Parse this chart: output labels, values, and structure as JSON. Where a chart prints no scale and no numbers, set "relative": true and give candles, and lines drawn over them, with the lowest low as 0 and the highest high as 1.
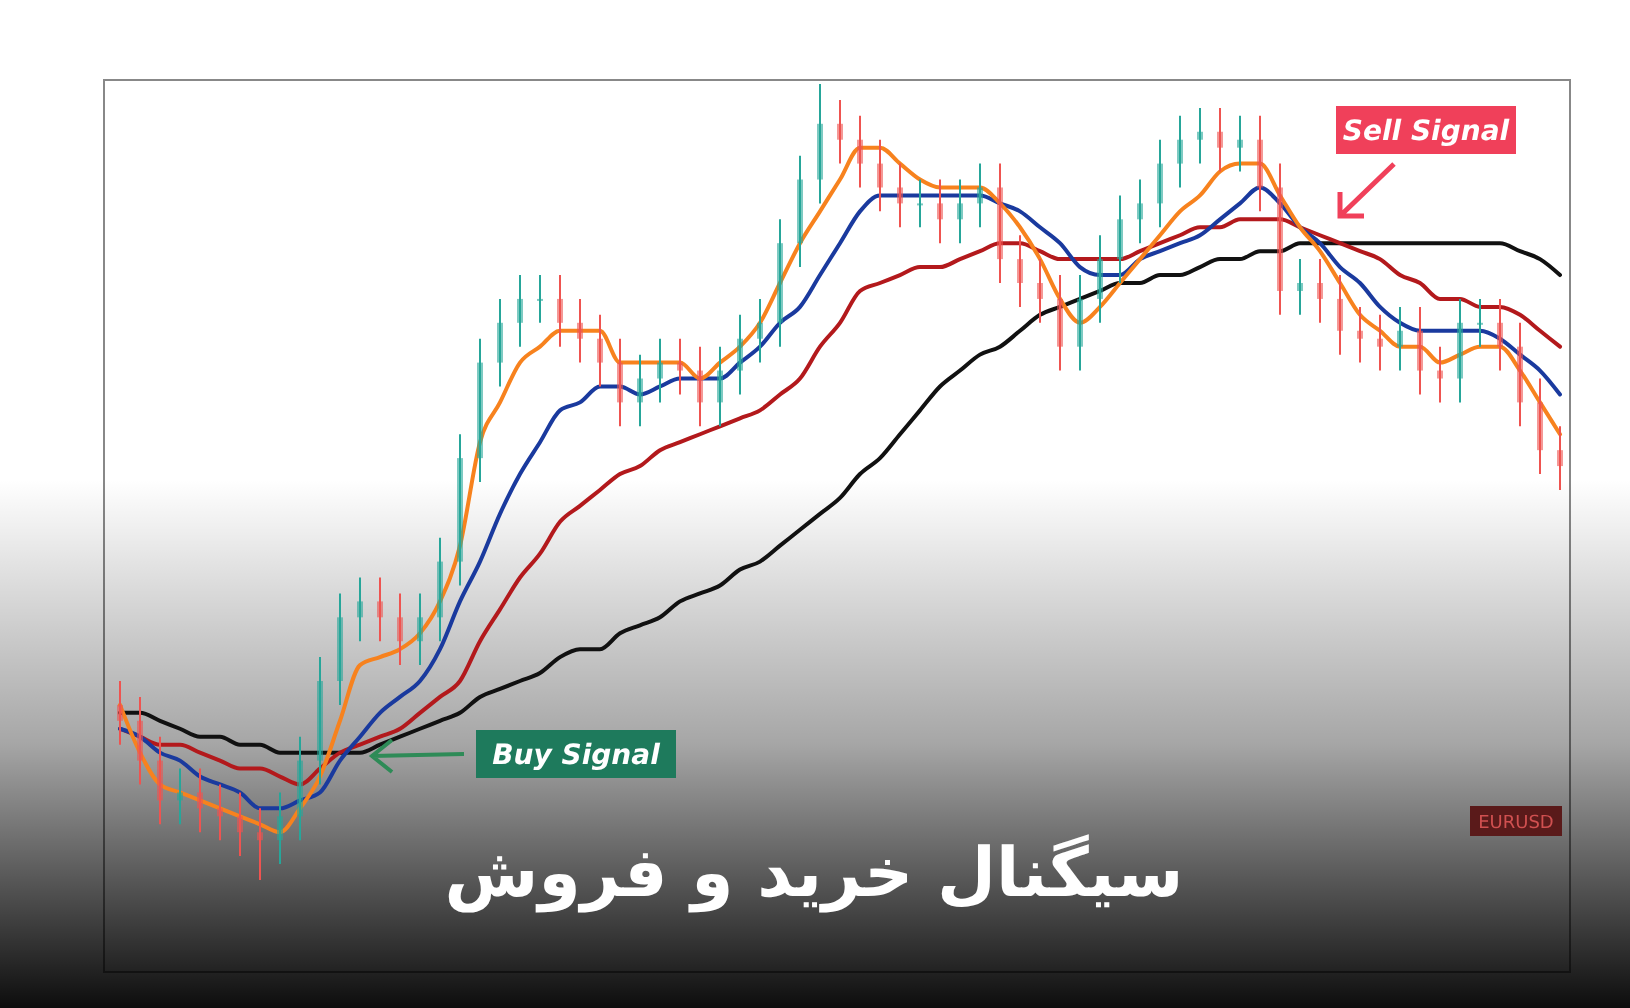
{
  "chart_data": {
    "type": "candlestick",
    "relative": true,
    "title": "سیگنال خرید و فروش",
    "annotations": [
      "Buy Signal",
      "Sell Signal",
      "EURUSD"
    ],
    "categories": [
      null,
      null,
      null,
      null,
      null,
      null,
      null,
      null,
      null,
      null,
      null,
      null,
      null,
      null,
      null,
      null,
      null,
      null,
      null,
      null,
      null,
      null,
      null,
      null,
      null,
      null,
      null,
      null,
      null,
      null,
      null,
      null,
      null,
      null,
      null,
      null,
      null,
      null,
      null,
      null,
      null,
      null,
      null,
      null,
      null,
      null,
      null,
      null,
      null,
      null,
      null,
      null,
      null,
      null,
      null,
      null,
      null,
      null,
      null,
      null,
      null,
      null,
      null,
      null,
      null,
      null,
      null,
      null,
      null,
      null,
      null,
      null,
      null
    ],
    "ohlc": [
      [
        0.22,
        0.25,
        0.17,
        0.2
      ],
      [
        0.2,
        0.23,
        0.12,
        0.15
      ],
      [
        0.15,
        0.18,
        0.07,
        0.1
      ],
      [
        0.1,
        0.14,
        0.07,
        0.11
      ],
      [
        0.11,
        0.14,
        0.06,
        0.09
      ],
      [
        0.09,
        0.12,
        0.05,
        0.08
      ],
      [
        0.08,
        0.11,
        0.03,
        0.06
      ],
      [
        0.06,
        0.09,
        0,
        0.05
      ],
      [
        0.05,
        0.11,
        0.02,
        0.08
      ],
      [
        0.08,
        0.18,
        0.05,
        0.15
      ],
      [
        0.15,
        0.28,
        0.12,
        0.25
      ],
      [
        0.25,
        0.36,
        0.22,
        0.33
      ],
      [
        0.33,
        0.38,
        0.3,
        0.35
      ],
      [
        0.35,
        0.38,
        0.3,
        0.33
      ],
      [
        0.33,
        0.36,
        0.27,
        0.3
      ],
      [
        0.3,
        0.36,
        0.27,
        0.33
      ],
      [
        0.33,
        0.43,
        0.3,
        0.4
      ],
      [
        0.4,
        0.56,
        0.37,
        0.53
      ],
      [
        0.53,
        0.68,
        0.5,
        0.65
      ],
      [
        0.65,
        0.73,
        0.62,
        0.7
      ],
      [
        0.7,
        0.76,
        0.67,
        0.73
      ],
      [
        0.73,
        0.76,
        0.7,
        0.73
      ],
      [
        0.73,
        0.76,
        0.67,
        0.7
      ],
      [
        0.7,
        0.73,
        0.65,
        0.68
      ],
      [
        0.68,
        0.71,
        0.62,
        0.65
      ],
      [
        0.65,
        0.68,
        0.57,
        0.6
      ],
      [
        0.6,
        0.66,
        0.57,
        0.63
      ],
      [
        0.63,
        0.68,
        0.6,
        0.65
      ],
      [
        0.65,
        0.68,
        0.61,
        0.64
      ],
      [
        0.64,
        0.67,
        0.57,
        0.6
      ],
      [
        0.6,
        0.67,
        0.57,
        0.64
      ],
      [
        0.64,
        0.71,
        0.61,
        0.68
      ],
      [
        0.68,
        0.73,
        0.65,
        0.7
      ],
      [
        0.7,
        0.83,
        0.67,
        0.8
      ],
      [
        0.8,
        0.91,
        0.77,
        0.88
      ],
      [
        0.88,
        1,
        0.85,
        0.95
      ],
      [
        0.95,
        0.98,
        0.9,
        0.93
      ],
      [
        0.93,
        0.96,
        0.87,
        0.9
      ],
      [
        0.9,
        0.93,
        0.84,
        0.87
      ],
      [
        0.87,
        0.9,
        0.82,
        0.85
      ],
      [
        0.85,
        0.88,
        0.82,
        0.85
      ],
      [
        0.85,
        0.88,
        0.8,
        0.83
      ],
      [
        0.83,
        0.88,
        0.8,
        0.85
      ],
      [
        0.85,
        0.9,
        0.82,
        0.87
      ],
      [
        0.87,
        0.9,
        0.75,
        0.78
      ],
      [
        0.78,
        0.81,
        0.72,
        0.75
      ],
      [
        0.75,
        0.78,
        0.7,
        0.73
      ],
      [
        0.73,
        0.76,
        0.64,
        0.67
      ],
      [
        0.67,
        0.76,
        0.64,
        0.73
      ],
      [
        0.73,
        0.81,
        0.7,
        0.78
      ],
      [
        0.78,
        0.86,
        0.75,
        0.83
      ],
      [
        0.83,
        0.88,
        0.8,
        0.85
      ],
      [
        0.85,
        0.93,
        0.82,
        0.9
      ],
      [
        0.9,
        0.96,
        0.87,
        0.93
      ],
      [
        0.93,
        0.97,
        0.9,
        0.94
      ],
      [
        0.94,
        0.97,
        0.89,
        0.92
      ],
      [
        0.92,
        0.96,
        0.89,
        0.93
      ],
      [
        0.93,
        0.96,
        0.84,
        0.87
      ],
      [
        0.87,
        0.9,
        0.71,
        0.74
      ],
      [
        0.74,
        0.78,
        0.71,
        0.75
      ],
      [
        0.75,
        0.78,
        0.7,
        0.73
      ],
      [
        0.73,
        0.76,
        0.66,
        0.69
      ],
      [
        0.69,
        0.72,
        0.65,
        0.68
      ],
      [
        0.68,
        0.71,
        0.64,
        0.67
      ],
      [
        0.67,
        0.72,
        0.64,
        0.69
      ],
      [
        0.69,
        0.72,
        0.61,
        0.64
      ],
      [
        0.64,
        0.67,
        0.6,
        0.63
      ],
      [
        0.63,
        0.73,
        0.6,
        0.7
      ],
      [
        0.7,
        0.73,
        0.67,
        0.7
      ],
      [
        0.7,
        0.73,
        0.64,
        0.67
      ],
      [
        0.67,
        0.7,
        0.57,
        0.6
      ],
      [
        0.6,
        0.63,
        0.51,
        0.54
      ],
      [
        0.54,
        0.57,
        0.49,
        0.52
      ]
    ],
    "series": [
      {
        "type": "line",
        "color": "#111111",
        "values": [
          0.21,
          0.21,
          0.2,
          0.19,
          0.18,
          0.18,
          0.17,
          0.17,
          0.16,
          0.16,
          0.16,
          0.16,
          0.16,
          0.17,
          0.18,
          0.19,
          0.2,
          0.21,
          0.23,
          0.24,
          0.25,
          0.26,
          0.28,
          0.29,
          0.29,
          0.31,
          0.32,
          0.33,
          0.35,
          0.36,
          0.37,
          0.39,
          0.4,
          0.42,
          0.44,
          0.46,
          0.48,
          0.51,
          0.53,
          0.56,
          0.59,
          0.62,
          0.64,
          0.66,
          0.67,
          0.69,
          0.71,
          0.72,
          0.73,
          0.74,
          0.75,
          0.75,
          0.76,
          0.76,
          0.77,
          0.78,
          0.78,
          0.79,
          0.79,
          0.8,
          0.8,
          0.8,
          0.8,
          0.8,
          0.8,
          0.8,
          0.8,
          0.8,
          0.8,
          0.8,
          0.79,
          0.78,
          0.76
        ]
      },
      {
        "type": "line",
        "color": "#b3191c",
        "values": [
          0.19,
          0.18,
          0.17,
          0.17,
          0.16,
          0.15,
          0.14,
          0.14,
          0.13,
          0.12,
          0.14,
          0.16,
          0.17,
          0.18,
          0.19,
          0.21,
          0.23,
          0.25,
          0.3,
          0.34,
          0.38,
          0.41,
          0.45,
          0.47,
          0.49,
          0.51,
          0.52,
          0.54,
          0.55,
          0.56,
          0.57,
          0.58,
          0.59,
          0.61,
          0.63,
          0.67,
          0.7,
          0.74,
          0.75,
          0.76,
          0.77,
          0.77,
          0.78,
          0.79,
          0.8,
          0.8,
          0.79,
          0.78,
          0.78,
          0.78,
          0.78,
          0.79,
          0.8,
          0.81,
          0.82,
          0.82,
          0.83,
          0.83,
          0.83,
          0.82,
          0.81,
          0.8,
          0.79,
          0.78,
          0.76,
          0.75,
          0.73,
          0.73,
          0.72,
          0.72,
          0.71,
          0.69,
          0.67
        ]
      },
      {
        "type": "line",
        "color": "#1a3a9e",
        "values": [
          0.19,
          0.18,
          0.16,
          0.15,
          0.13,
          0.12,
          0.11,
          0.09,
          0.09,
          0.1,
          0.11,
          0.15,
          0.18,
          0.21,
          0.23,
          0.25,
          0.29,
          0.35,
          0.4,
          0.46,
          0.51,
          0.55,
          0.59,
          0.6,
          0.62,
          0.62,
          0.61,
          0.62,
          0.63,
          0.63,
          0.63,
          0.65,
          0.67,
          0.7,
          0.72,
          0.76,
          0.8,
          0.84,
          0.86,
          0.86,
          0.86,
          0.86,
          0.86,
          0.86,
          0.85,
          0.84,
          0.82,
          0.8,
          0.77,
          0.76,
          0.76,
          0.78,
          0.79,
          0.8,
          0.81,
          0.83,
          0.85,
          0.87,
          0.85,
          0.82,
          0.8,
          0.77,
          0.75,
          0.72,
          0.7,
          0.69,
          0.69,
          0.69,
          0.69,
          0.68,
          0.66,
          0.64,
          0.61
        ]
      },
      {
        "type": "line",
        "color": "#f7821e",
        "values": [
          0.22,
          0.16,
          0.12,
          0.11,
          0.1,
          0.09,
          0.08,
          0.07,
          0.06,
          0.09,
          0.13,
          0.2,
          0.27,
          0.28,
          0.29,
          0.31,
          0.35,
          0.42,
          0.55,
          0.6,
          0.65,
          0.67,
          0.69,
          0.69,
          0.69,
          0.65,
          0.65,
          0.65,
          0.65,
          0.63,
          0.65,
          0.67,
          0.7,
          0.75,
          0.8,
          0.84,
          0.88,
          0.92,
          0.92,
          0.9,
          0.88,
          0.87,
          0.87,
          0.87,
          0.85,
          0.82,
          0.78,
          0.73,
          0.7,
          0.72,
          0.75,
          0.78,
          0.81,
          0.84,
          0.86,
          0.89,
          0.9,
          0.9,
          0.86,
          0.82,
          0.79,
          0.75,
          0.71,
          0.69,
          0.67,
          0.67,
          0.65,
          0.66,
          0.67,
          0.67,
          0.64,
          0.6,
          0.56
        ]
      }
    ]
  }
}
